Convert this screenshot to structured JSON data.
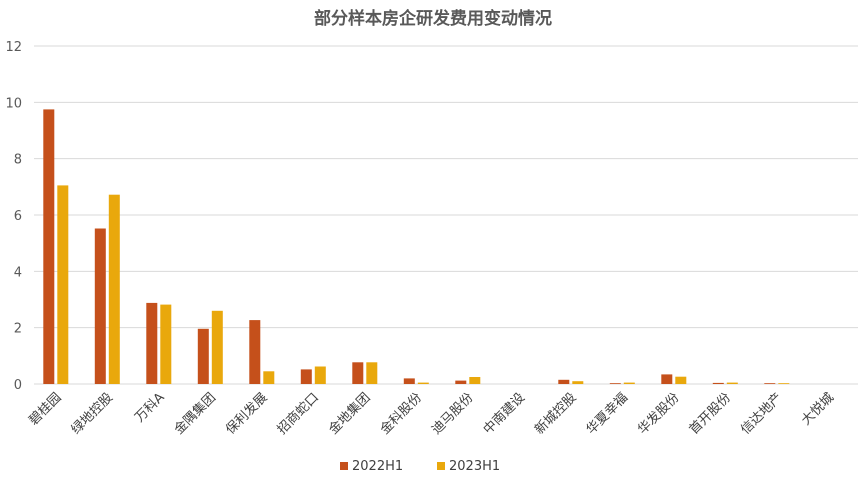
{
  "colors": {
    "series_2022": "#c5501b",
    "series_2023": "#e9a80c",
    "grid": "#d9d9d9",
    "text": "#595959"
  },
  "chart_data": {
    "type": "bar",
    "title": "部分样本房企研发费用变动情况",
    "xlabel": "",
    "ylabel": "",
    "ylim": [
      0,
      12
    ],
    "yticks": [
      0,
      2,
      4,
      6,
      8,
      10,
      12
    ],
    "grid": true,
    "legend": "bottom-center",
    "categories": [
      "碧桂园",
      "绿地控股",
      "万科A",
      "金隅集团",
      "保利发展",
      "招商蛇口",
      "金地集团",
      "金科股份",
      "迪马股份",
      "中南建设",
      "新城控股",
      "华夏幸福",
      "华发股份",
      "首开股份",
      "信达地产",
      "大悦城"
    ],
    "series": [
      {
        "name": "2022H1",
        "values": [
          9.75,
          5.52,
          2.88,
          1.96,
          2.27,
          0.52,
          0.77,
          0.2,
          0.12,
          0,
          0.15,
          0.03,
          0.34,
          0.04,
          0.03,
          0
        ]
      },
      {
        "name": "2023H1",
        "values": [
          7.05,
          6.72,
          2.82,
          2.6,
          0.45,
          0.62,
          0.77,
          0.05,
          0.25,
          0,
          0.1,
          0.05,
          0.26,
          0.05,
          0.03,
          0
        ]
      }
    ]
  }
}
